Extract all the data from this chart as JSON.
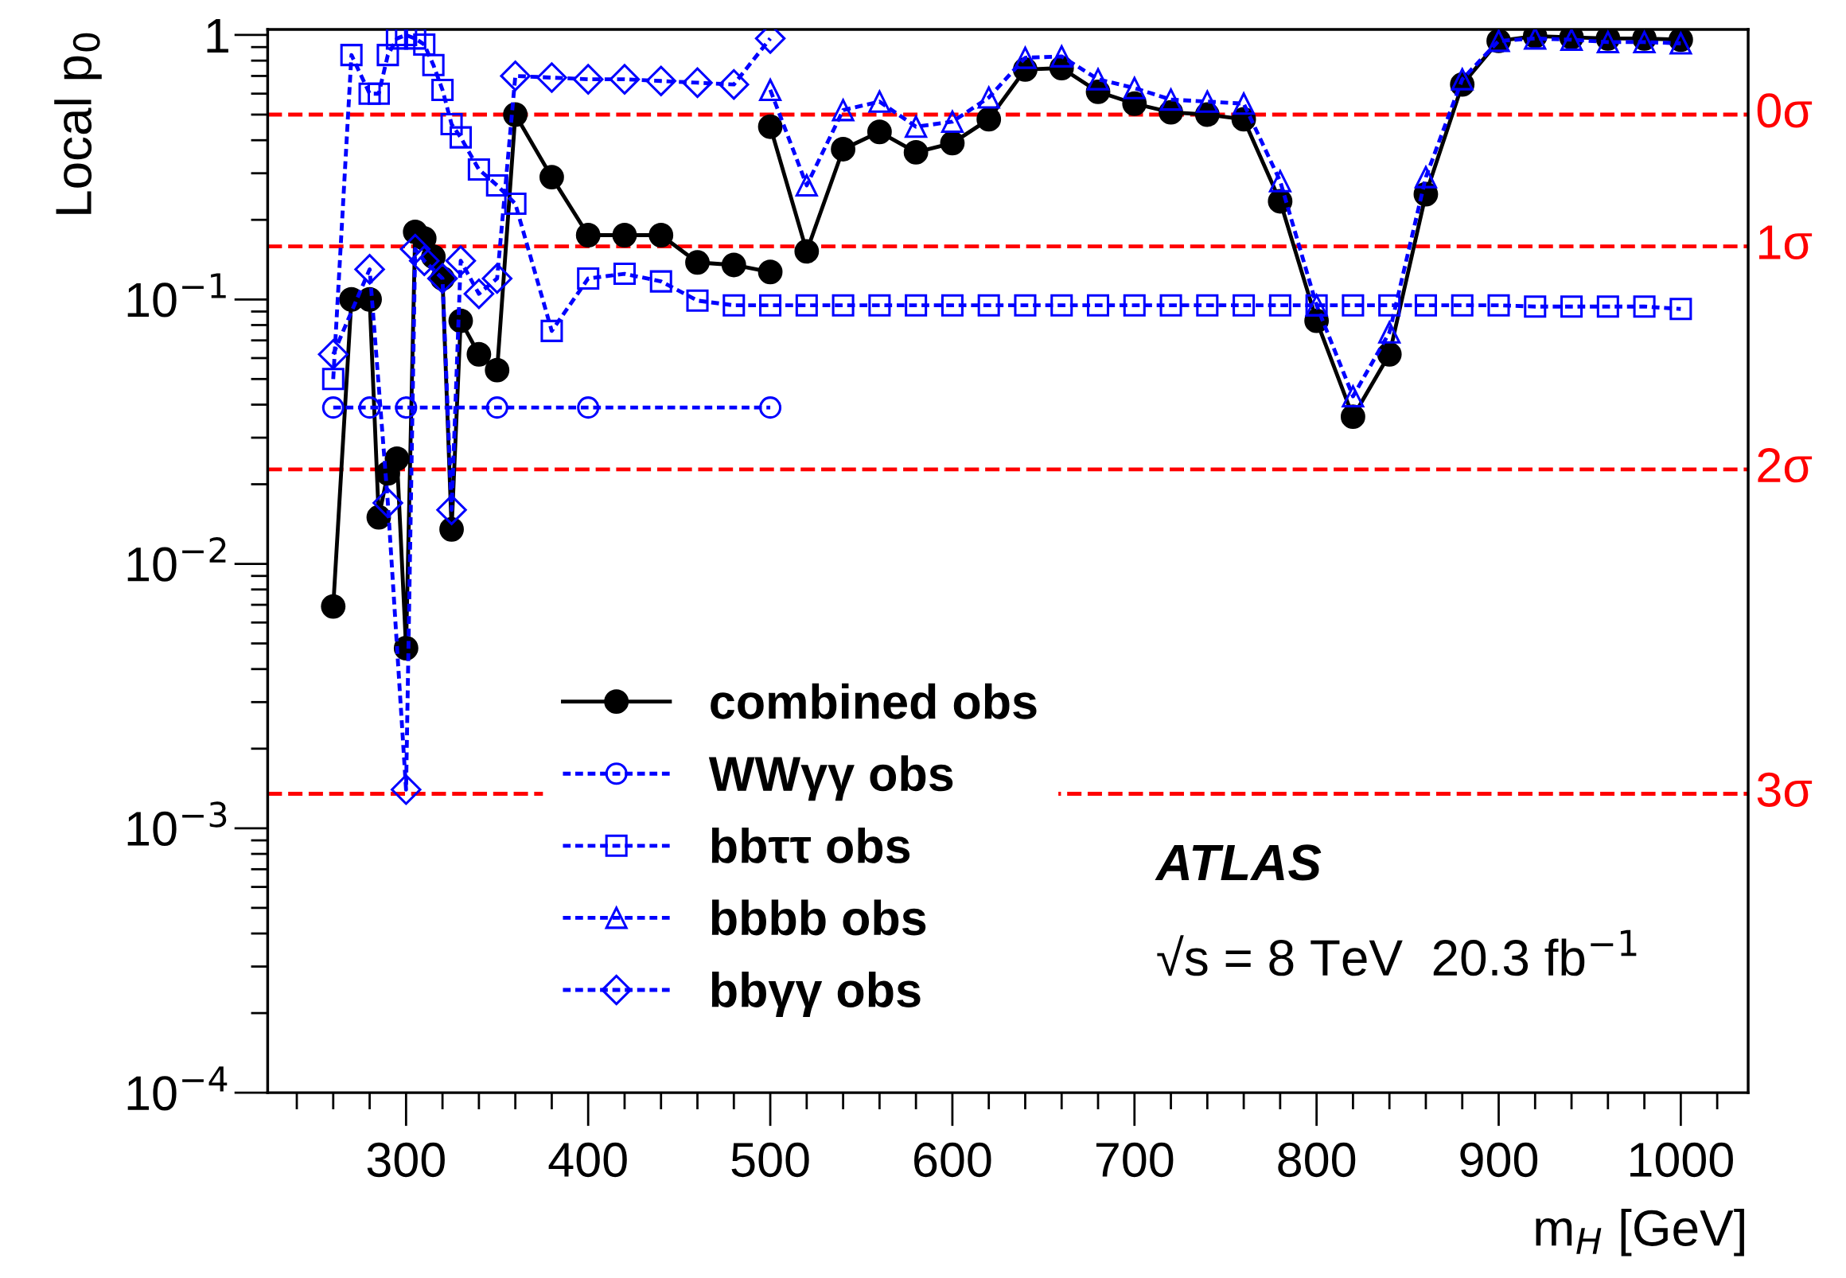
{
  "chart_data": {
    "type": "line",
    "xlabel": "m$_{H}$ [GeV]",
    "ylabel": "Local p$_{0}$",
    "log": "y",
    "grid": false,
    "legend": "bottom",
    "xlim": [
      224,
      1037
    ],
    "ylim": [
      0.0001,
      1.05
    ],
    "xticks": [
      300,
      400,
      500,
      600,
      700,
      800,
      900,
      1000
    ],
    "yticks": [
      {
        "value": 0.0001,
        "label": "10$^{−4}$"
      },
      {
        "value": 0.001,
        "label": "10$^{−3}$"
      },
      {
        "value": 0.01,
        "label": "10$^{−2}$"
      },
      {
        "value": 0.1,
        "label": "10$^{−1}$"
      },
      {
        "value": 1,
        "label": "1"
      }
    ],
    "series": [
      {
        "name": "combined obs",
        "color": "#000000",
        "marker": "circle",
        "line_style": "solid",
        "x": [
          260,
          270,
          280,
          285,
          290,
          295,
          300,
          305,
          310,
          315,
          320,
          325,
          330,
          340,
          350,
          360,
          380,
          400,
          420,
          440,
          460,
          480,
          500,
          null,
          500,
          520,
          540,
          560,
          580,
          600,
          620,
          640,
          660,
          680,
          700,
          720,
          740,
          760,
          780,
          800,
          820,
          840,
          860,
          880,
          900,
          920,
          940,
          960,
          980,
          1000
        ],
        "values": [
          0.0069,
          0.1,
          0.1,
          0.015,
          0.022,
          0.025,
          0.0048,
          0.18,
          0.17,
          0.145,
          0.12,
          0.0135,
          0.083,
          0.062,
          0.054,
          0.5,
          0.29,
          0.175,
          0.175,
          0.175,
          0.138,
          0.135,
          0.127,
          null,
          0.45,
          0.152,
          0.37,
          0.43,
          0.36,
          0.39,
          0.48,
          0.74,
          0.75,
          0.61,
          0.55,
          0.51,
          0.5,
          0.48,
          0.235,
          0.083,
          0.036,
          0.062,
          0.25,
          0.65,
          0.95,
          0.99,
          0.98,
          0.97,
          0.97,
          0.96
        ]
      },
      {
        "name": "WWγγ obs",
        "color": "#0000ff",
        "marker": "circle",
        "line_style": "dashed",
        "x": [
          260,
          280,
          300,
          350,
          400,
          500
        ],
        "values": [
          0.039,
          0.039,
          0.039,
          0.039,
          0.039,
          0.039
        ]
      },
      {
        "name": "bbττ obs",
        "color": "#0000ff",
        "marker": "square",
        "line_style": "dashed",
        "x": [
          260,
          270,
          280,
          285,
          290,
          295,
          300,
          305,
          310,
          315,
          320,
          325,
          330,
          340,
          350,
          360,
          380,
          400,
          420,
          440,
          460,
          480,
          500,
          520,
          540,
          560,
          580,
          600,
          620,
          640,
          660,
          680,
          700,
          720,
          740,
          760,
          780,
          800,
          820,
          840,
          860,
          880,
          900,
          920,
          940,
          960,
          980,
          1000
        ],
        "values": [
          0.05,
          0.84,
          0.6,
          0.6,
          0.84,
          0.97,
          1.0,
          0.97,
          0.92,
          0.77,
          0.62,
          0.46,
          0.41,
          0.31,
          0.27,
          0.23,
          0.076,
          0.12,
          0.125,
          0.117,
          0.099,
          0.095,
          0.095,
          0.095,
          0.095,
          0.095,
          0.095,
          0.095,
          0.095,
          0.095,
          0.095,
          0.095,
          0.095,
          0.095,
          0.095,
          0.095,
          0.095,
          0.095,
          0.095,
          0.095,
          0.095,
          0.095,
          0.095,
          0.094,
          0.094,
          0.094,
          0.094,
          0.092
        ]
      },
      {
        "name": "bbbb obs",
        "color": "#0000ff",
        "marker": "triangle",
        "line_style": "dashed",
        "x": [
          500,
          520,
          540,
          560,
          580,
          600,
          620,
          640,
          660,
          680,
          700,
          720,
          740,
          760,
          780,
          800,
          820,
          840,
          860,
          880,
          900,
          920,
          940,
          960,
          980,
          1000
        ],
        "values": [
          0.62,
          0.27,
          0.52,
          0.56,
          0.45,
          0.47,
          0.58,
          0.82,
          0.83,
          0.68,
          0.63,
          0.57,
          0.56,
          0.55,
          0.28,
          0.095,
          0.043,
          0.075,
          0.29,
          0.68,
          0.95,
          0.97,
          0.96,
          0.94,
          0.94,
          0.93
        ]
      },
      {
        "name": "bbγγ obs",
        "color": "#0000ff",
        "marker": "diamond",
        "line_style": "dashed",
        "x": [
          260,
          280,
          290,
          300,
          305,
          310,
          320,
          325,
          330,
          340,
          350,
          360,
          380,
          400,
          420,
          440,
          460,
          480,
          500
        ],
        "values": [
          0.062,
          0.13,
          0.017,
          0.0014,
          0.155,
          0.14,
          0.12,
          0.016,
          0.14,
          0.105,
          0.12,
          0.7,
          0.69,
          0.68,
          0.68,
          0.67,
          0.66,
          0.65,
          0.97
        ]
      }
    ],
    "ref_lines": [
      {
        "axis": "y",
        "value": 0.5,
        "label": "0σ",
        "color": "#ff0000",
        "line_style": "dashed"
      },
      {
        "axis": "y",
        "value": 0.1587,
        "label": "1σ",
        "color": "#ff0000",
        "line_style": "dashed"
      },
      {
        "axis": "y",
        "value": 0.02275,
        "label": "2σ",
        "color": "#ff0000",
        "line_style": "dashed"
      },
      {
        "axis": "y",
        "value": 0.00135,
        "label": "3σ",
        "color": "#ff0000",
        "line_style": "dashed"
      }
    ],
    "annotations": [
      "ATLAS",
      "√s = 8 TeV  20.3 fb$^{−1}$"
    ]
  }
}
